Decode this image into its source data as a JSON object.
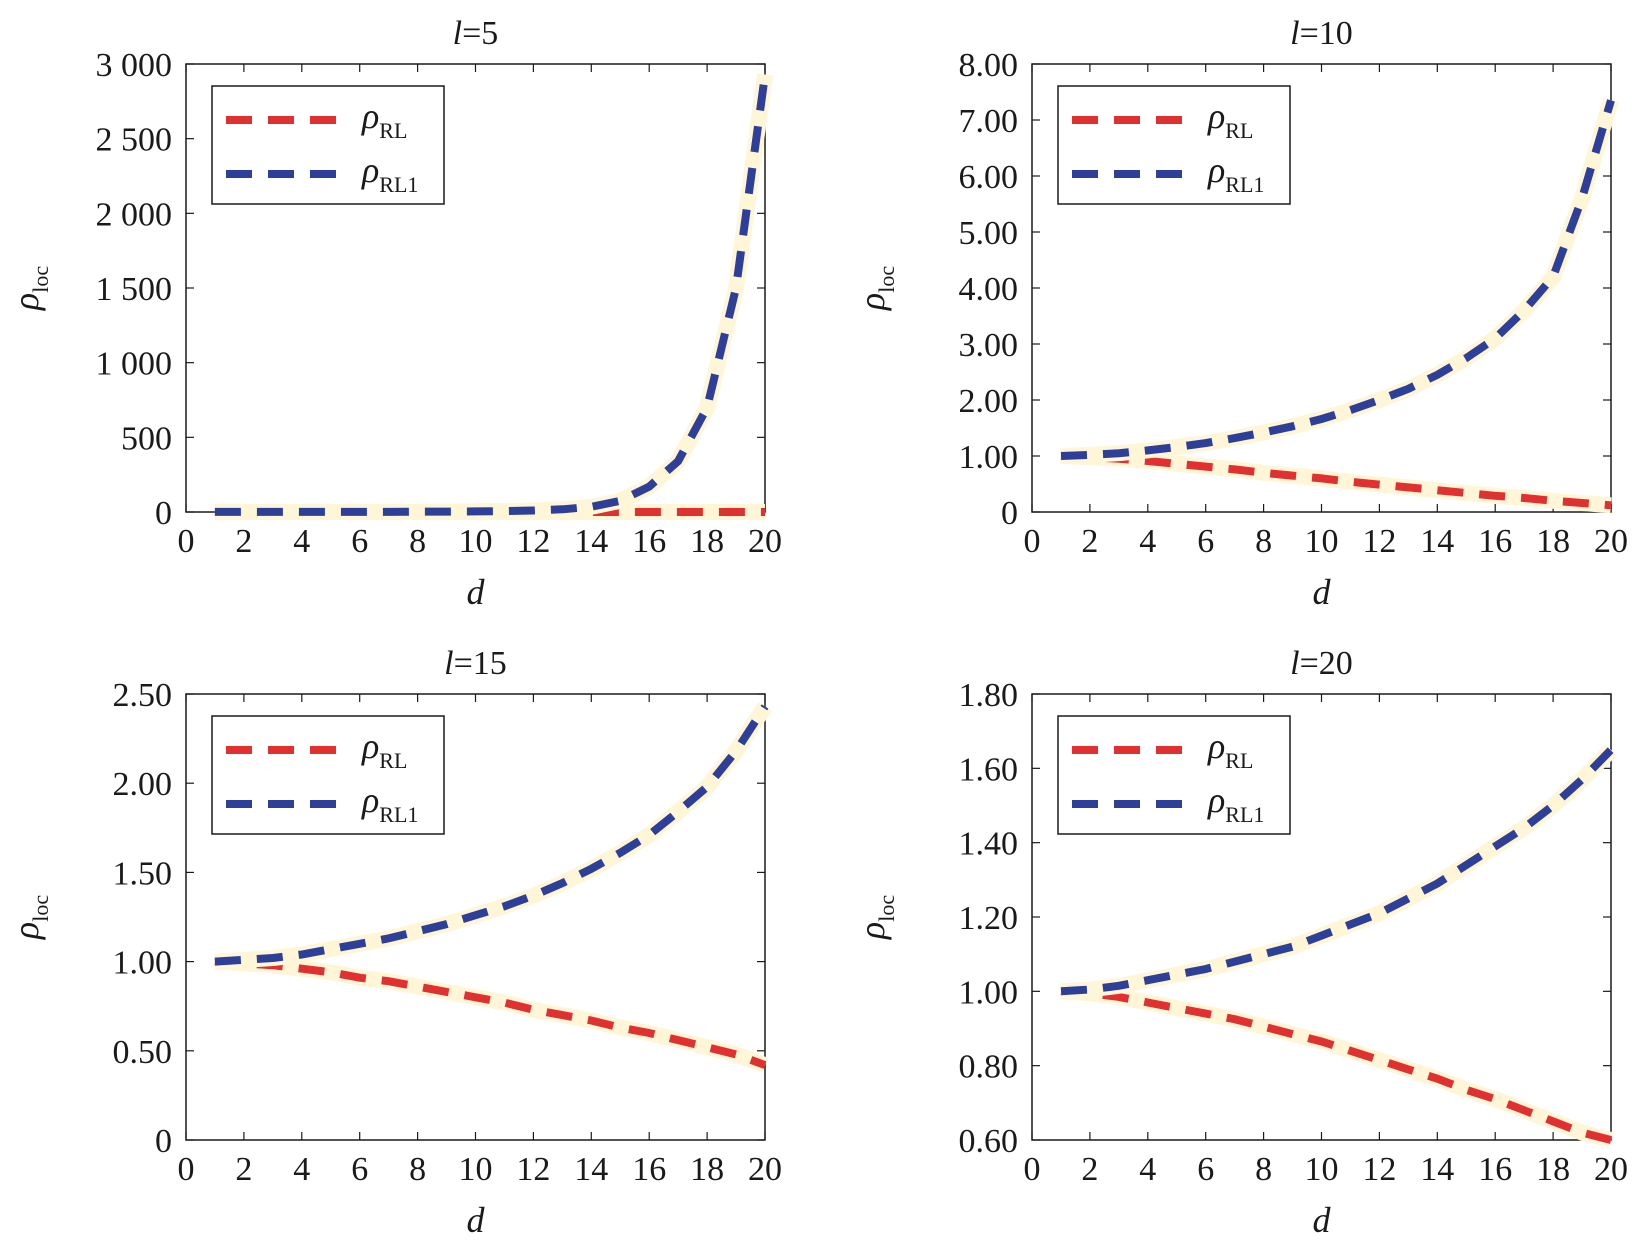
{
  "figure": {
    "colors": {
      "rho_RL": "#e03030",
      "rho_RL1": "#2e3f9a",
      "axes": "#1a1a1a",
      "halo": "#fff6d8"
    },
    "legend_labels": [
      {
        "symbol": "ρ",
        "subscript": "RL"
      },
      {
        "symbol": "ρ",
        "subscript": "RL1"
      }
    ],
    "ylabel": {
      "symbol": "ρ",
      "subscript": "loc"
    },
    "xlabel": "d"
  },
  "chart_data": [
    {
      "type": "line",
      "title": {
        "prefix": "l",
        "rest": "=5"
      },
      "xlabel": "d",
      "ylabel": "ρ_loc",
      "xlim": [
        0,
        20
      ],
      "ylim": [
        0,
        3000
      ],
      "xticks": [
        "0",
        "2",
        "4",
        "6",
        "8",
        "10",
        "12",
        "14",
        "16",
        "18",
        "20"
      ],
      "yticks": [
        "0",
        "500",
        "1 000",
        "1 500",
        "2 000",
        "2 500",
        "3 000"
      ],
      "legend": "top-left",
      "grid": false,
      "x": [
        1,
        2,
        3,
        4,
        5,
        6,
        7,
        8,
        9,
        10,
        11,
        12,
        13,
        14,
        15,
        16,
        17,
        18,
        19,
        20
      ],
      "series": [
        {
          "name": "ρ_RL",
          "style": "dashed",
          "values": [
            0,
            0,
            0,
            0,
            0,
            0,
            0,
            0,
            0,
            0,
            0,
            0,
            0,
            0,
            0,
            0,
            0,
            0,
            0,
            0
          ]
        },
        {
          "name": "ρ_RL1",
          "style": "dashed",
          "values": [
            1,
            1,
            1,
            1,
            1,
            1,
            1,
            2,
            3,
            4,
            6,
            10,
            18,
            35,
            75,
            170,
            340,
            700,
            1500,
            2930
          ]
        }
      ]
    },
    {
      "type": "line",
      "title": {
        "prefix": "l",
        "rest": "=10"
      },
      "xlabel": "d",
      "ylabel": "ρ_loc",
      "xlim": [
        0,
        20
      ],
      "ylim": [
        0,
        8
      ],
      "xticks": [
        "0",
        "2",
        "4",
        "6",
        "8",
        "10",
        "12",
        "14",
        "16",
        "18",
        "20"
      ],
      "yticks": [
        "0",
        "1.00",
        "2.00",
        "3.00",
        "4.00",
        "5.00",
        "6.00",
        "7.00",
        "8.00"
      ],
      "legend": "top-left",
      "grid": false,
      "x": [
        1,
        2,
        3,
        4,
        5,
        6,
        7,
        8,
        9,
        10,
        11,
        12,
        13,
        14,
        15,
        16,
        17,
        18,
        19,
        20
      ],
      "series": [
        {
          "name": "ρ_RL",
          "style": "dashed",
          "values": [
            1.0,
            0.98,
            0.95,
            0.91,
            0.86,
            0.81,
            0.76,
            0.7,
            0.65,
            0.6,
            0.54,
            0.49,
            0.44,
            0.39,
            0.34,
            0.29,
            0.25,
            0.2,
            0.16,
            0.12
          ]
        },
        {
          "name": "ρ_RL1",
          "style": "dashed",
          "values": [
            1.0,
            1.02,
            1.05,
            1.1,
            1.16,
            1.23,
            1.32,
            1.42,
            1.53,
            1.66,
            1.82,
            2.0,
            2.2,
            2.45,
            2.75,
            3.1,
            3.6,
            4.2,
            5.6,
            7.35
          ]
        }
      ]
    },
    {
      "type": "line",
      "title": {
        "prefix": "l",
        "rest": "=15"
      },
      "xlabel": "d",
      "ylabel": "ρ_loc",
      "xlim": [
        0,
        20
      ],
      "ylim": [
        0,
        2.5
      ],
      "xticks": [
        "0",
        "2",
        "4",
        "6",
        "8",
        "10",
        "12",
        "14",
        "16",
        "18",
        "20"
      ],
      "yticks": [
        "0",
        "0.50",
        "1.00",
        "1.50",
        "2.00",
        "2.50"
      ],
      "legend": "top-left",
      "grid": false,
      "x": [
        1,
        2,
        3,
        4,
        5,
        6,
        7,
        8,
        9,
        10,
        11,
        12,
        13,
        14,
        15,
        16,
        17,
        18,
        19,
        20
      ],
      "series": [
        {
          "name": "ρ_RL",
          "style": "dashed",
          "values": [
            1.0,
            0.99,
            0.98,
            0.96,
            0.94,
            0.91,
            0.89,
            0.86,
            0.83,
            0.8,
            0.77,
            0.73,
            0.7,
            0.67,
            0.63,
            0.6,
            0.56,
            0.52,
            0.48,
            0.42
          ]
        },
        {
          "name": "ρ_RL1",
          "style": "dashed",
          "values": [
            1.0,
            1.01,
            1.02,
            1.04,
            1.07,
            1.1,
            1.13,
            1.17,
            1.21,
            1.26,
            1.31,
            1.37,
            1.44,
            1.52,
            1.61,
            1.71,
            1.84,
            1.98,
            2.18,
            2.43
          ]
        }
      ]
    },
    {
      "type": "line",
      "title": {
        "prefix": "l",
        "rest": "=20"
      },
      "xlabel": "d",
      "ylabel": "ρ_loc",
      "xlim": [
        0,
        20
      ],
      "ylim": [
        0.6,
        1.8
      ],
      "xticks": [
        "0",
        "2",
        "4",
        "6",
        "8",
        "10",
        "12",
        "14",
        "16",
        "18",
        "20"
      ],
      "yticks": [
        "0.60",
        "0.80",
        "1.00",
        "1.20",
        "1.40",
        "1.60",
        "1.80"
      ],
      "legend": "top-left",
      "grid": false,
      "x": [
        1,
        2,
        3,
        4,
        5,
        6,
        7,
        8,
        9,
        10,
        11,
        12,
        13,
        14,
        15,
        16,
        17,
        18,
        19,
        20
      ],
      "series": [
        {
          "name": "ρ_RL",
          "style": "dashed",
          "values": [
            1.0,
            0.995,
            0.985,
            0.97,
            0.955,
            0.94,
            0.925,
            0.905,
            0.885,
            0.865,
            0.84,
            0.815,
            0.79,
            0.765,
            0.735,
            0.71,
            0.68,
            0.65,
            0.62,
            0.6
          ]
        },
        {
          "name": "ρ_RL1",
          "style": "dashed",
          "values": [
            1.0,
            1.005,
            1.015,
            1.03,
            1.045,
            1.06,
            1.08,
            1.1,
            1.12,
            1.15,
            1.18,
            1.21,
            1.25,
            1.29,
            1.34,
            1.39,
            1.44,
            1.5,
            1.57,
            1.65
          ]
        }
      ]
    }
  ]
}
